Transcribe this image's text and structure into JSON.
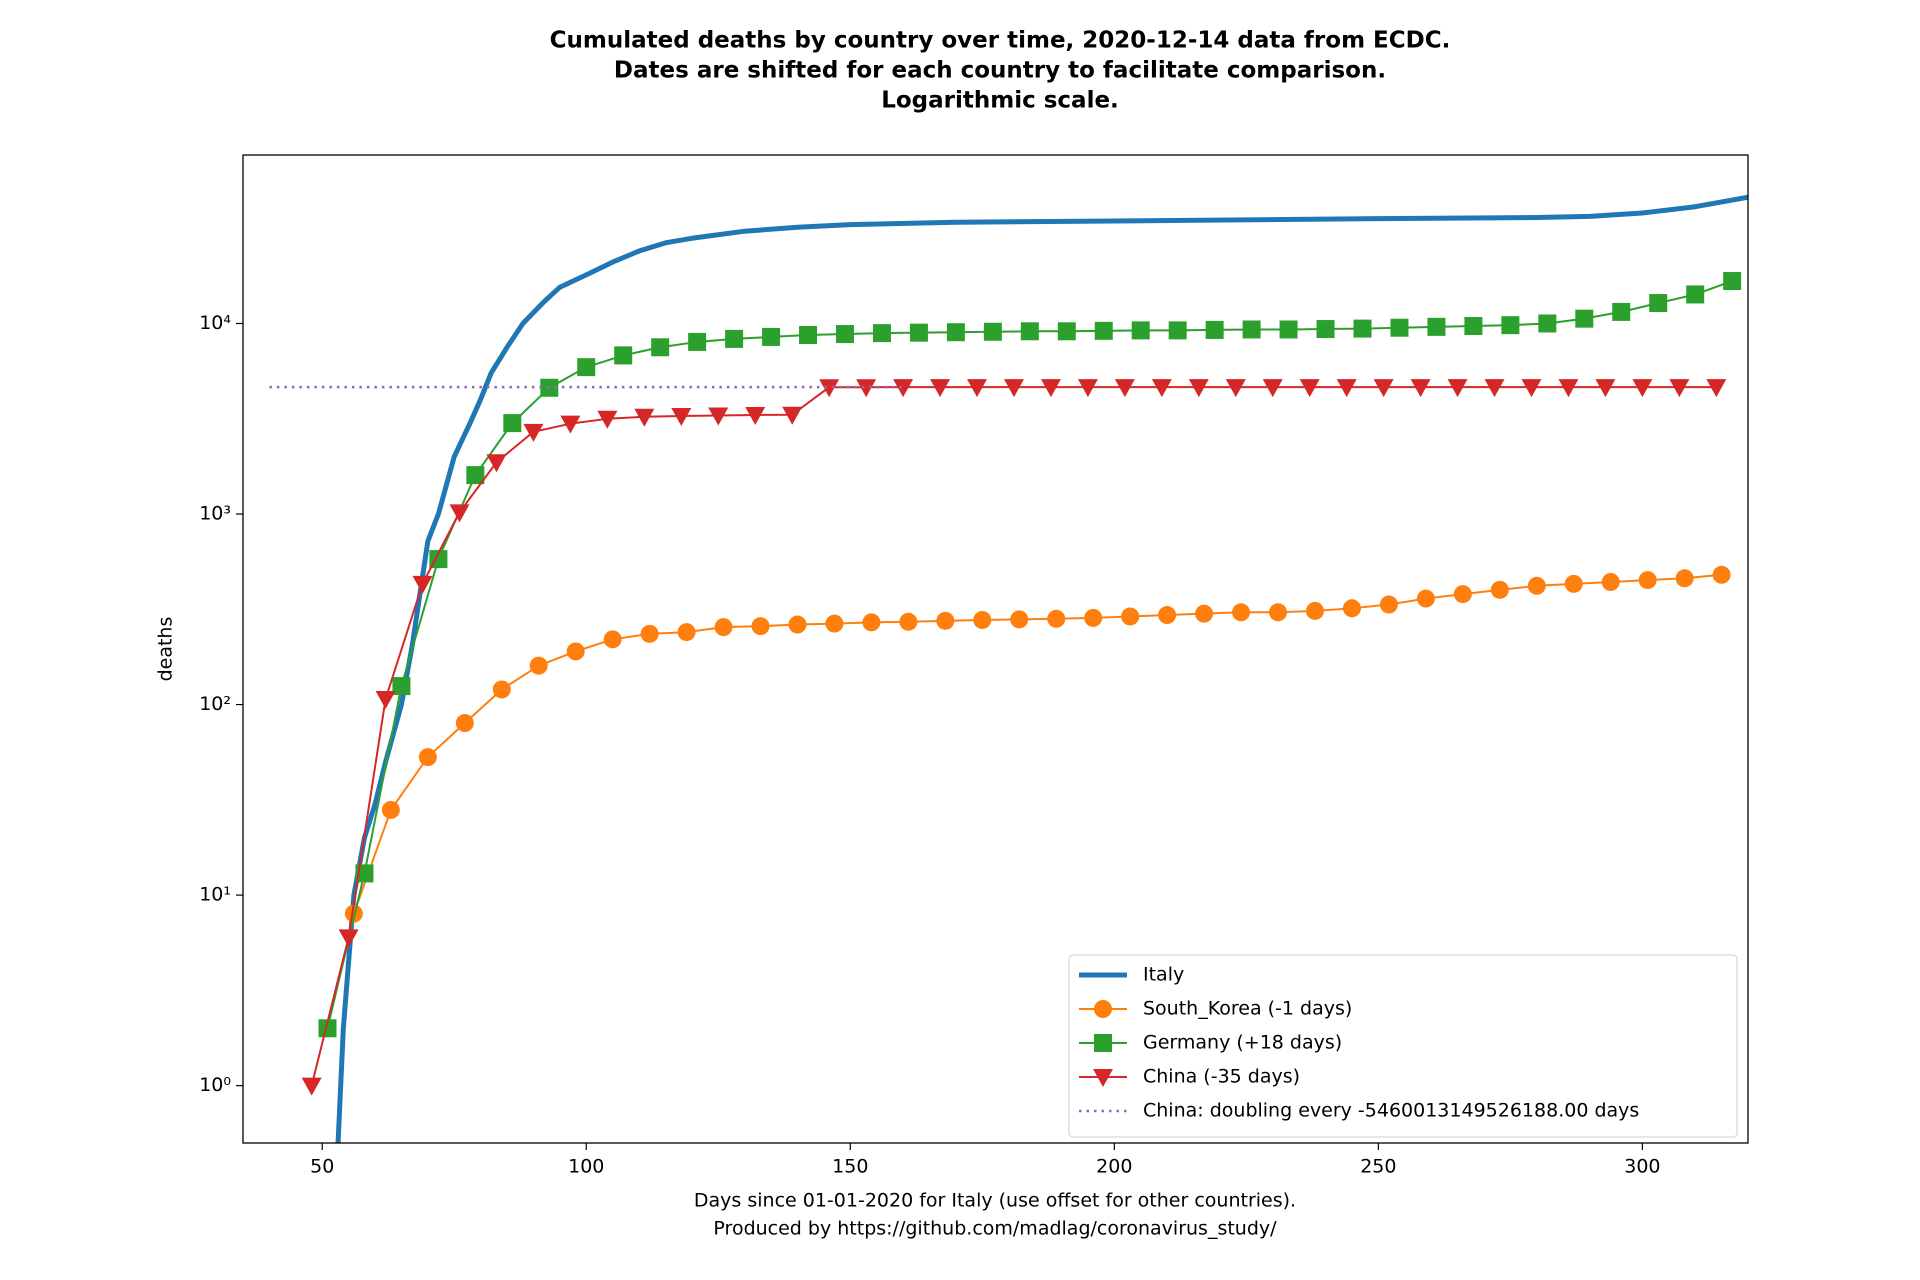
{
  "chart_data": {
    "type": "line",
    "title": [
      "Cumulated deaths by country over time, 2020-12-14 data from ECDC.",
      "Dates are shifted for each country to facilitate comparison.",
      "Logarithmic scale."
    ],
    "xlabel": [
      "Days since 01-01-2020 for Italy (use offset for other countries).",
      "Produced by https://github.com/madlag/coronavirus_study/"
    ],
    "ylabel": "deaths",
    "log_y": true,
    "xlim": [
      35,
      320
    ],
    "ylim": [
      0.5,
      76600
    ],
    "xticks": [
      50,
      100,
      150,
      200,
      250,
      300
    ],
    "yticks": [
      {
        "value": 1,
        "label": "10⁰"
      },
      {
        "value": 10,
        "label": "10¹"
      },
      {
        "value": 100,
        "label": "10²"
      },
      {
        "value": 1000,
        "label": "10³"
      },
      {
        "value": 10000,
        "label": "10⁴"
      }
    ],
    "legend": "lower right",
    "series": [
      {
        "name": "Italy",
        "color": "#1f77b4",
        "linewidth": 5,
        "marker": "none",
        "linestyle": "solid",
        "x": [
          53,
          54,
          56,
          58,
          60,
          62,
          65,
          67,
          70,
          72,
          75,
          78,
          80,
          82,
          85,
          88,
          92,
          95,
          100,
          105,
          110,
          115,
          120,
          130,
          140,
          150,
          170,
          200,
          250,
          280,
          290,
          300,
          310,
          320
        ],
        "values": [
          0.5,
          2,
          10,
          20,
          30,
          50,
          100,
          200,
          720,
          1000,
          2000,
          3000,
          4000,
          5500,
          7500,
          10000,
          13000,
          15500,
          18000,
          21000,
          24000,
          26500,
          28000,
          30500,
          32000,
          33000,
          34000,
          34500,
          35500,
          36000,
          36500,
          38000,
          41000,
          46000
        ]
      },
      {
        "name": "South_Korea (-1 days)",
        "color": "#ff7f0e",
        "linewidth": 2,
        "marker": "circle",
        "linestyle": "solid",
        "x": [
          56,
          63,
          70,
          77,
          84,
          91,
          98,
          105,
          112,
          119,
          126,
          133,
          140,
          147,
          154,
          161,
          168,
          175,
          182,
          189,
          196,
          203,
          210,
          217,
          224,
          231,
          238,
          245,
          252,
          259,
          266,
          273,
          280,
          287,
          294,
          301,
          308,
          315
        ],
        "values": [
          8,
          28,
          53,
          80,
          120,
          160,
          190,
          220,
          235,
          240,
          255,
          258,
          263,
          266,
          270,
          272,
          275,
          278,
          280,
          282,
          285,
          290,
          295,
          300,
          305,
          305,
          310,
          320,
          335,
          360,
          380,
          400,
          420,
          430,
          440,
          450,
          460,
          480
        ]
      },
      {
        "name": "Germany (+18 days)",
        "color": "#2ca02c",
        "linewidth": 2,
        "marker": "square",
        "linestyle": "solid",
        "x": [
          51,
          58,
          65,
          72,
          79,
          86,
          93,
          100,
          107,
          114,
          121,
          128,
          135,
          142,
          149,
          156,
          163,
          170,
          177,
          184,
          191,
          198,
          205,
          212,
          219,
          226,
          233,
          240,
          247,
          254,
          261,
          268,
          275,
          282,
          289,
          296,
          303,
          310,
          317
        ],
        "values": [
          2,
          13,
          125,
          580,
          1600,
          3000,
          4600,
          5900,
          6800,
          7500,
          8000,
          8300,
          8500,
          8700,
          8800,
          8900,
          8950,
          9000,
          9050,
          9100,
          9100,
          9150,
          9200,
          9200,
          9250,
          9300,
          9300,
          9350,
          9400,
          9500,
          9600,
          9700,
          9800,
          10000,
          10600,
          11500,
          12800,
          14200,
          16700
        ]
      },
      {
        "name": "China (-35 days)",
        "color": "#d62728",
        "linewidth": 2,
        "marker": "triangle-down",
        "linestyle": "solid",
        "x": [
          48,
          55,
          62,
          69,
          76,
          83,
          90,
          97,
          104,
          111,
          118,
          125,
          132,
          139,
          146,
          153,
          160,
          167,
          174,
          181,
          188,
          195,
          202,
          209,
          216,
          223,
          230,
          237,
          244,
          251,
          258,
          265,
          272,
          279,
          286,
          293,
          300,
          307,
          314
        ],
        "values": [
          1,
          6,
          107,
          430,
          1020,
          1870,
          2700,
          2980,
          3160,
          3240,
          3270,
          3290,
          3310,
          3320,
          4630,
          4630,
          4632,
          4632,
          4633,
          4633,
          4634,
          4634,
          4634,
          4634,
          4634,
          4634,
          4634,
          4634,
          4634,
          4634,
          4634,
          4634,
          4634,
          4634,
          4634,
          4634,
          4634,
          4634,
          4634
        ]
      },
      {
        "name": "China: doubling every -5460013149526188.00 days",
        "color": "#9467bd",
        "linewidth": 2.5,
        "marker": "none",
        "linestyle": "dotted",
        "x": [
          40,
          160
        ],
        "values": [
          4636,
          4636
        ]
      }
    ]
  }
}
